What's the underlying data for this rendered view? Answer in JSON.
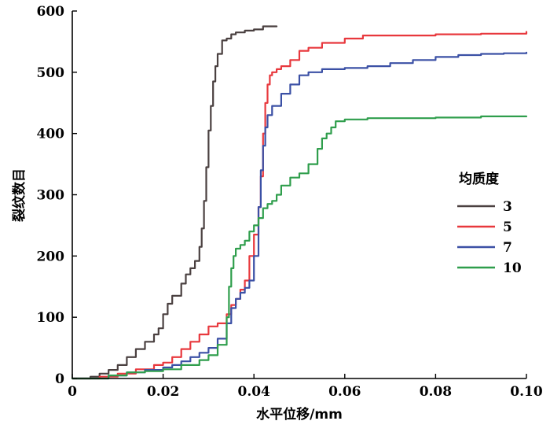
{
  "chart_data": {
    "type": "line",
    "title": "",
    "xlabel": "水平位移/mm",
    "ylabel": "裂纹数目",
    "xlim": [
      0,
      0.1
    ],
    "ylim": [
      0,
      600
    ],
    "xticks": [
      "0",
      "0.02",
      "0.04",
      "0.06",
      "0.08",
      "0.10"
    ],
    "xtick_values": [
      0,
      0.02,
      0.04,
      0.06,
      0.08,
      0.1
    ],
    "yticks": [
      "0",
      "100",
      "200",
      "300",
      "400",
      "500",
      "600"
    ],
    "ytick_values": [
      0,
      100,
      200,
      300,
      400,
      500,
      600
    ],
    "grid": false,
    "legend": {
      "title": "均质度",
      "position": "right"
    },
    "series": [
      {
        "name": "3",
        "color": "#4a4040",
        "x": [
          0,
          0.004,
          0.006,
          0.008,
          0.01,
          0.012,
          0.014,
          0.016,
          0.018,
          0.019,
          0.02,
          0.021,
          0.022,
          0.024,
          0.025,
          0.026,
          0.027,
          0.028,
          0.0285,
          0.029,
          0.0295,
          0.03,
          0.0305,
          0.031,
          0.0315,
          0.032,
          0.033,
          0.034,
          0.035,
          0.036,
          0.038,
          0.04,
          0.042,
          0.044,
          0.045
        ],
        "y": [
          0,
          3,
          8,
          14,
          22,
          35,
          48,
          60,
          72,
          82,
          105,
          122,
          135,
          155,
          170,
          180,
          192,
          215,
          245,
          290,
          345,
          405,
          445,
          485,
          510,
          530,
          552,
          555,
          562,
          565,
          568,
          570,
          575,
          575,
          575
        ]
      },
      {
        "name": "5",
        "color": "#e8383d",
        "x": [
          0,
          0.006,
          0.01,
          0.014,
          0.018,
          0.02,
          0.022,
          0.024,
          0.026,
          0.028,
          0.03,
          0.032,
          0.034,
          0.035,
          0.036,
          0.037,
          0.038,
          0.039,
          0.04,
          0.041,
          0.0415,
          0.042,
          0.0425,
          0.043,
          0.0435,
          0.044,
          0.045,
          0.046,
          0.048,
          0.05,
          0.052,
          0.055,
          0.06,
          0.064,
          0.07,
          0.08,
          0.09,
          0.1
        ],
        "y": [
          0,
          3,
          8,
          15,
          22,
          26,
          35,
          48,
          60,
          72,
          85,
          90,
          105,
          120,
          130,
          145,
          160,
          200,
          235,
          280,
          330,
          400,
          450,
          480,
          495,
          500,
          505,
          510,
          520,
          535,
          540,
          548,
          555,
          560,
          560,
          562,
          563,
          566
        ]
      },
      {
        "name": "7",
        "color": "#3b50a5",
        "x": [
          0,
          0.008,
          0.012,
          0.016,
          0.02,
          0.022,
          0.024,
          0.026,
          0.028,
          0.03,
          0.032,
          0.034,
          0.035,
          0.036,
          0.037,
          0.038,
          0.039,
          0.04,
          0.041,
          0.0415,
          0.042,
          0.0425,
          0.043,
          0.044,
          0.046,
          0.048,
          0.05,
          0.052,
          0.055,
          0.06,
          0.065,
          0.07,
          0.075,
          0.08,
          0.085,
          0.09,
          0.095,
          0.1
        ],
        "y": [
          0,
          5,
          10,
          14,
          18,
          22,
          28,
          35,
          42,
          50,
          65,
          90,
          115,
          130,
          140,
          148,
          160,
          200,
          280,
          340,
          380,
          410,
          430,
          445,
          465,
          480,
          495,
          500,
          505,
          507,
          510,
          515,
          520,
          525,
          528,
          530,
          531,
          532
        ]
      },
      {
        "name": "10",
        "color": "#2f9e4c",
        "x": [
          0,
          0.008,
          0.012,
          0.016,
          0.02,
          0.024,
          0.028,
          0.03,
          0.032,
          0.034,
          0.0345,
          0.035,
          0.0355,
          0.036,
          0.037,
          0.038,
          0.039,
          0.04,
          0.041,
          0.042,
          0.043,
          0.044,
          0.045,
          0.046,
          0.048,
          0.05,
          0.052,
          0.054,
          0.055,
          0.056,
          0.057,
          0.058,
          0.06,
          0.065,
          0.07,
          0.08,
          0.09,
          0.1
        ],
        "y": [
          0,
          5,
          10,
          12,
          15,
          22,
          30,
          38,
          55,
          100,
          150,
          180,
          200,
          212,
          218,
          225,
          240,
          250,
          262,
          278,
          285,
          290,
          300,
          315,
          328,
          335,
          350,
          375,
          392,
          400,
          410,
          420,
          423,
          425,
          425,
          426,
          428,
          428
        ]
      }
    ]
  }
}
